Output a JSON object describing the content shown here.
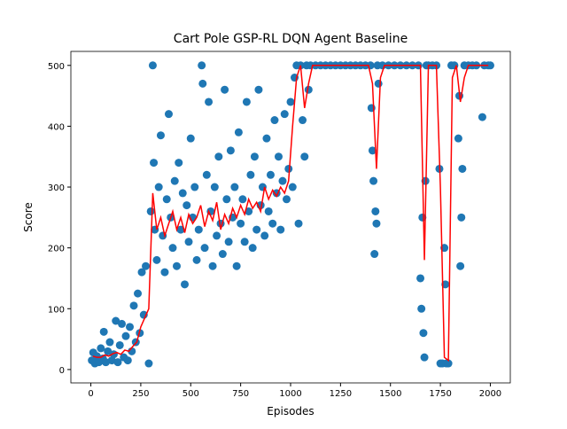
{
  "chart_data": {
    "type": "scatter-line",
    "title": "Cart Pole GSP-RL DQN Agent Baseline",
    "xlabel": "Episodes",
    "ylabel": "Score",
    "xlim": [
      -100,
      2100
    ],
    "ylim": [
      -22,
      523
    ],
    "xticks": [
      0,
      250,
      500,
      750,
      1000,
      1250,
      1500,
      1750,
      2000
    ],
    "yticks": [
      0,
      100,
      200,
      300,
      400,
      500
    ],
    "series": [
      {
        "kind": "scatter",
        "color": "#1f77b4",
        "x": [
          5,
          12,
          20,
          30,
          40,
          50,
          60,
          65,
          75,
          85,
          95,
          105,
          115,
          125,
          135,
          145,
          155,
          165,
          175,
          185,
          195,
          205,
          215,
          225,
          235,
          245,
          255,
          265,
          275,
          290,
          300,
          310,
          315,
          320,
          330,
          340,
          350,
          360,
          370,
          380,
          390,
          400,
          410,
          420,
          430,
          440,
          450,
          460,
          470,
          480,
          490,
          500,
          510,
          520,
          530,
          540,
          555,
          560,
          570,
          580,
          590,
          600,
          610,
          620,
          630,
          640,
          650,
          660,
          670,
          680,
          690,
          700,
          710,
          720,
          730,
          740,
          750,
          760,
          770,
          780,
          790,
          800,
          810,
          820,
          830,
          840,
          850,
          860,
          870,
          880,
          890,
          900,
          910,
          920,
          930,
          940,
          950,
          960,
          970,
          980,
          990,
          1000,
          1010,
          1020,
          1030,
          1040,
          1050,
          1060,
          1070,
          1080,
          1090,
          1100,
          1125,
          1150,
          1175,
          1200,
          1225,
          1250,
          1275,
          1300,
          1325,
          1350,
          1375,
          1400,
          1405,
          1410,
          1415,
          1420,
          1425,
          1430,
          1435,
          1440,
          1460,
          1490,
          1520,
          1550,
          1580,
          1610,
          1640,
          1650,
          1655,
          1660,
          1665,
          1670,
          1675,
          1680,
          1690,
          1710,
          1730,
          1745,
          1750,
          1760,
          1770,
          1775,
          1780,
          1790,
          1805,
          1820,
          1840,
          1845,
          1850,
          1855,
          1860,
          1870,
          1890,
          1910,
          1930,
          1960,
          1970,
          1990,
          2000
        ],
        "values": [
          15,
          28,
          10,
          22,
          12,
          35,
          18,
          62,
          12,
          30,
          45,
          15,
          25,
          80,
          12,
          40,
          75,
          20,
          55,
          15,
          70,
          30,
          105,
          45,
          125,
          60,
          160,
          90,
          170,
          10,
          260,
          500,
          340,
          230,
          180,
          300,
          385,
          220,
          160,
          280,
          420,
          250,
          200,
          310,
          170,
          340,
          230,
          290,
          140,
          270,
          210,
          380,
          250,
          300,
          180,
          230,
          500,
          470,
          200,
          320,
          440,
          260,
          170,
          300,
          220,
          350,
          240,
          190,
          460,
          280,
          210,
          360,
          250,
          300,
          170,
          390,
          240,
          280,
          210,
          440,
          260,
          320,
          200,
          350,
          230,
          460,
          270,
          300,
          220,
          380,
          260,
          320,
          240,
          410,
          290,
          350,
          230,
          310,
          420,
          280,
          330,
          440,
          300,
          480,
          500,
          240,
          500,
          410,
          350,
          500,
          460,
          500,
          500,
          500,
          500,
          500,
          500,
          500,
          500,
          500,
          500,
          500,
          500,
          500,
          430,
          360,
          310,
          190,
          260,
          240,
          500,
          470,
          500,
          500,
          500,
          500,
          500,
          500,
          500,
          150,
          100,
          250,
          60,
          20,
          310,
          500,
          500,
          500,
          500,
          330,
          10,
          10,
          200,
          140,
          10,
          10,
          500,
          500,
          380,
          450,
          170,
          250,
          330,
          500,
          500,
          500,
          500,
          415,
          500,
          500,
          500
        ]
      },
      {
        "kind": "line",
        "color": "#ff0000",
        "x": [
          10,
          30,
          50,
          70,
          90,
          110,
          130,
          150,
          170,
          190,
          210,
          230,
          250,
          270,
          290,
          310,
          330,
          350,
          370,
          390,
          410,
          430,
          450,
          470,
          490,
          510,
          530,
          550,
          570,
          590,
          610,
          630,
          650,
          670,
          690,
          710,
          730,
          750,
          770,
          790,
          810,
          830,
          850,
          870,
          890,
          910,
          930,
          950,
          970,
          990,
          1010,
          1030,
          1050,
          1070,
          1090,
          1110,
          1130,
          1150,
          1170,
          1190,
          1210,
          1230,
          1250,
          1270,
          1290,
          1310,
          1330,
          1350,
          1370,
          1390,
          1410,
          1430,
          1450,
          1470,
          1490,
          1510,
          1530,
          1550,
          1570,
          1590,
          1610,
          1630,
          1650,
          1670,
          1690,
          1710,
          1730,
          1750,
          1770,
          1790,
          1810,
          1830,
          1850,
          1870,
          1890,
          1910,
          1930,
          1950,
          1970,
          1990
        ],
        "values": [
          22,
          20,
          20,
          24,
          22,
          26,
          28,
          25,
          32,
          30,
          38,
          45,
          70,
          85,
          100,
          290,
          230,
          250,
          220,
          240,
          260,
          230,
          250,
          225,
          255,
          240,
          250,
          270,
          235,
          260,
          245,
          275,
          230,
          255,
          240,
          265,
          250,
          270,
          255,
          280,
          265,
          275,
          260,
          300,
          280,
          295,
          285,
          300,
          290,
          310,
          400,
          480,
          500,
          430,
          470,
          500,
          500,
          500,
          500,
          500,
          500,
          500,
          500,
          500,
          500,
          500,
          500,
          500,
          500,
          500,
          470,
          330,
          480,
          500,
          500,
          500,
          500,
          500,
          500,
          500,
          500,
          500,
          500,
          180,
          500,
          500,
          500,
          300,
          20,
          15,
          480,
          500,
          440,
          480,
          500,
          500,
          500,
          500,
          500,
          500
        ]
      }
    ]
  }
}
